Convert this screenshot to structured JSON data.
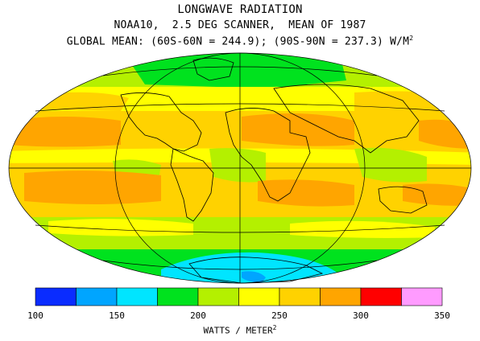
{
  "header": {
    "title": "LONGWAVE RADIATION",
    "subtitle": "NOAA10,  2.5 DEG SCANNER,  MEAN OF 1987",
    "global_mean": "GLOBAL MEAN: (60S-60N = 244.9); (90S-90N = 237.3) W/M",
    "global_mean_exp": "2"
  },
  "colorbar": {
    "ticks": [
      "100",
      "150",
      "200",
      "250",
      "300",
      "350"
    ],
    "colors": [
      "#0a2cff",
      "#00a5ff",
      "#00e5ff",
      "#00e21e",
      "#b4f000",
      "#ffff00",
      "#ffd200",
      "#ffa500",
      "#ff0000",
      "#ff9bff"
    ],
    "units_label": "WATTS / METER",
    "units_exp": "2"
  },
  "map": {
    "projection": "hammer-aitoff",
    "field": "outgoing longwave radiation",
    "colors": {
      "equator_band": "#ffd200",
      "subtropics": "#ffa500",
      "midlat": "#b4f000",
      "polar": "#00e21e",
      "antarctic": "#00e5ff",
      "antarctic_core": "#0a2cff"
    }
  }
}
